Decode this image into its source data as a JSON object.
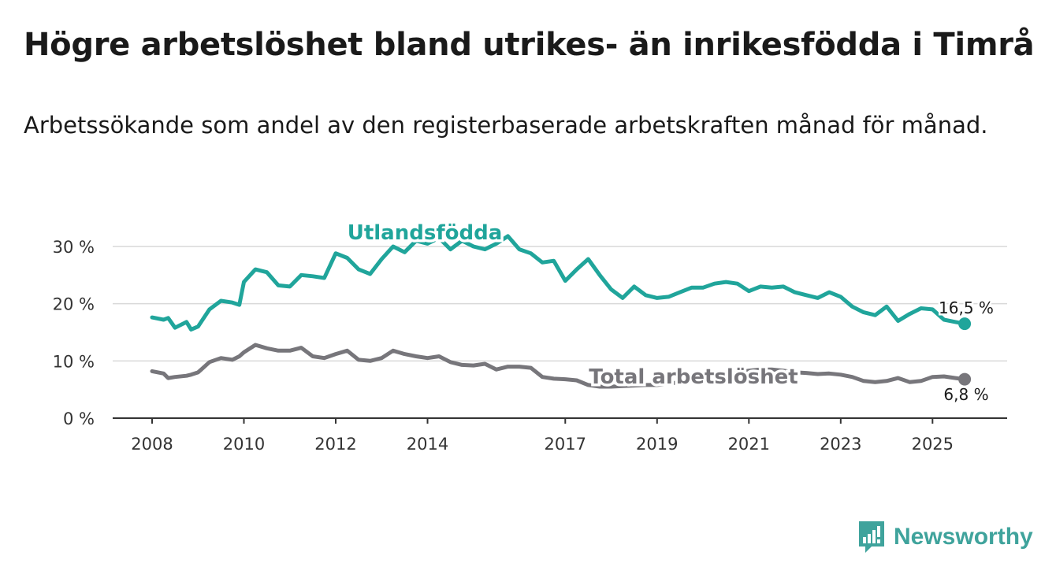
{
  "title": "Högre arbetslöshet bland utrikes- än inrikesfödda i Timrå",
  "subtitle": "Arbetssökande som andel av den registerbaserade arbetskraften månad för månad.",
  "brand": {
    "name": "Newsworthy",
    "icon": "newsworthy-logo-icon",
    "color": "#3fa39c"
  },
  "chart_data": {
    "type": "line",
    "title": "Högre arbetslöshet bland utrikes- än inrikesfödda i Timrå",
    "xlabel": "",
    "ylabel": "",
    "ylim": [
      0,
      30
    ],
    "xlim": [
      2008,
      2025.75
    ],
    "y_ticks": [
      0,
      10,
      20,
      30
    ],
    "y_tick_labels": [
      "0 %",
      "10 %",
      "20 %",
      "30 %"
    ],
    "x_ticks": [
      2008,
      2010,
      2012,
      2014,
      2017,
      2019,
      2021,
      2023,
      2025
    ],
    "x_tick_labels": [
      "2008",
      "2010",
      "2012",
      "2014",
      "2017",
      "2019",
      "2021",
      "2023",
      "2025"
    ],
    "grid": true,
    "series": [
      {
        "name": "Utlandsfödda",
        "color": "#20a59b",
        "end_label": "16,5 %",
        "end_value": 16.5,
        "x": [
          2008.0,
          2008.25,
          2008.35,
          2008.5,
          2008.75,
          2008.85,
          2009.0,
          2009.25,
          2009.5,
          2009.75,
          2009.9,
          2010.0,
          2010.25,
          2010.5,
          2010.75,
          2011.0,
          2011.25,
          2011.5,
          2011.75,
          2012.0,
          2012.25,
          2012.5,
          2012.75,
          2013.0,
          2013.25,
          2013.5,
          2013.75,
          2014.0,
          2014.25,
          2014.5,
          2014.75,
          2015.0,
          2015.25,
          2015.5,
          2015.75,
          2016.0,
          2016.25,
          2016.5,
          2016.75,
          2017.0,
          2017.25,
          2017.5,
          2017.75,
          2018.0,
          2018.25,
          2018.5,
          2018.75,
          2019.0,
          2019.25,
          2019.5,
          2019.75,
          2020.0,
          2020.25,
          2020.5,
          2020.75,
          2021.0,
          2021.25,
          2021.5,
          2021.75,
          2022.0,
          2022.25,
          2022.5,
          2022.75,
          2023.0,
          2023.25,
          2023.5,
          2023.75,
          2024.0,
          2024.25,
          2024.5,
          2024.75,
          2025.0,
          2025.25,
          2025.5,
          2025.7
        ],
        "values": [
          17.6,
          17.2,
          17.5,
          15.8,
          16.8,
          15.5,
          16.0,
          19.0,
          20.5,
          20.2,
          19.8,
          23.8,
          26.0,
          25.5,
          23.2,
          23.0,
          25.0,
          24.8,
          24.5,
          28.8,
          28.0,
          26.0,
          25.2,
          27.8,
          30.0,
          29.0,
          31.0,
          30.5,
          31.5,
          29.5,
          31.0,
          30.0,
          29.5,
          30.5,
          31.8,
          29.5,
          28.8,
          27.2,
          27.5,
          24.0,
          26.0,
          27.8,
          25.0,
          22.5,
          21.0,
          23.0,
          21.5,
          21.0,
          21.2,
          22.0,
          22.8,
          22.8,
          23.5,
          23.8,
          23.5,
          22.2,
          23.0,
          22.8,
          23.0,
          22.0,
          21.5,
          21.0,
          22.0,
          21.2,
          19.5,
          18.5,
          18.0,
          19.5,
          17.0,
          18.2,
          19.2,
          19.0,
          17.2,
          16.8,
          16.5
        ]
      },
      {
        "name": "Total arbetslöshet",
        "color": "#77767b",
        "end_label": "6,8 %",
        "end_value": 6.8,
        "x": [
          2008.0,
          2008.25,
          2008.35,
          2008.5,
          2008.75,
          2008.85,
          2009.0,
          2009.25,
          2009.5,
          2009.75,
          2009.9,
          2010.0,
          2010.25,
          2010.5,
          2010.75,
          2011.0,
          2011.25,
          2011.5,
          2011.75,
          2012.0,
          2012.25,
          2012.5,
          2012.75,
          2013.0,
          2013.25,
          2013.5,
          2013.75,
          2014.0,
          2014.25,
          2014.5,
          2014.75,
          2015.0,
          2015.25,
          2015.5,
          2015.75,
          2016.0,
          2016.25,
          2016.5,
          2016.75,
          2017.0,
          2017.25,
          2017.5,
          2017.75,
          2018.0,
          2018.25,
          2018.5,
          2018.75,
          2019.0,
          2019.25,
          2019.5,
          2019.75,
          2020.0,
          2020.25,
          2020.5,
          2020.75,
          2021.0,
          2021.25,
          2021.5,
          2021.75,
          2022.0,
          2022.25,
          2022.5,
          2022.75,
          2023.0,
          2023.25,
          2023.5,
          2023.75,
          2024.0,
          2024.25,
          2024.5,
          2024.75,
          2025.0,
          2025.25,
          2025.5,
          2025.7
        ],
        "values": [
          8.2,
          7.8,
          7.0,
          7.2,
          7.4,
          7.6,
          8.0,
          9.8,
          10.5,
          10.2,
          10.8,
          11.5,
          12.8,
          12.2,
          11.8,
          11.8,
          12.3,
          10.8,
          10.5,
          11.2,
          11.8,
          10.2,
          10.0,
          10.5,
          11.8,
          11.2,
          10.8,
          10.5,
          10.8,
          9.8,
          9.3,
          9.2,
          9.5,
          8.5,
          9.0,
          9.0,
          8.8,
          7.2,
          6.9,
          6.8,
          6.6,
          5.8,
          5.5,
          5.5,
          5.6,
          5.7,
          5.8,
          5.8,
          6.0,
          6.3,
          6.5,
          6.8,
          7.0,
          7.5,
          8.0,
          8.3,
          8.5,
          8.5,
          8.3,
          8.0,
          7.9,
          7.7,
          7.8,
          7.6,
          7.2,
          6.5,
          6.3,
          6.5,
          7.0,
          6.3,
          6.5,
          7.2,
          7.3,
          7.0,
          6.8
        ]
      }
    ]
  }
}
